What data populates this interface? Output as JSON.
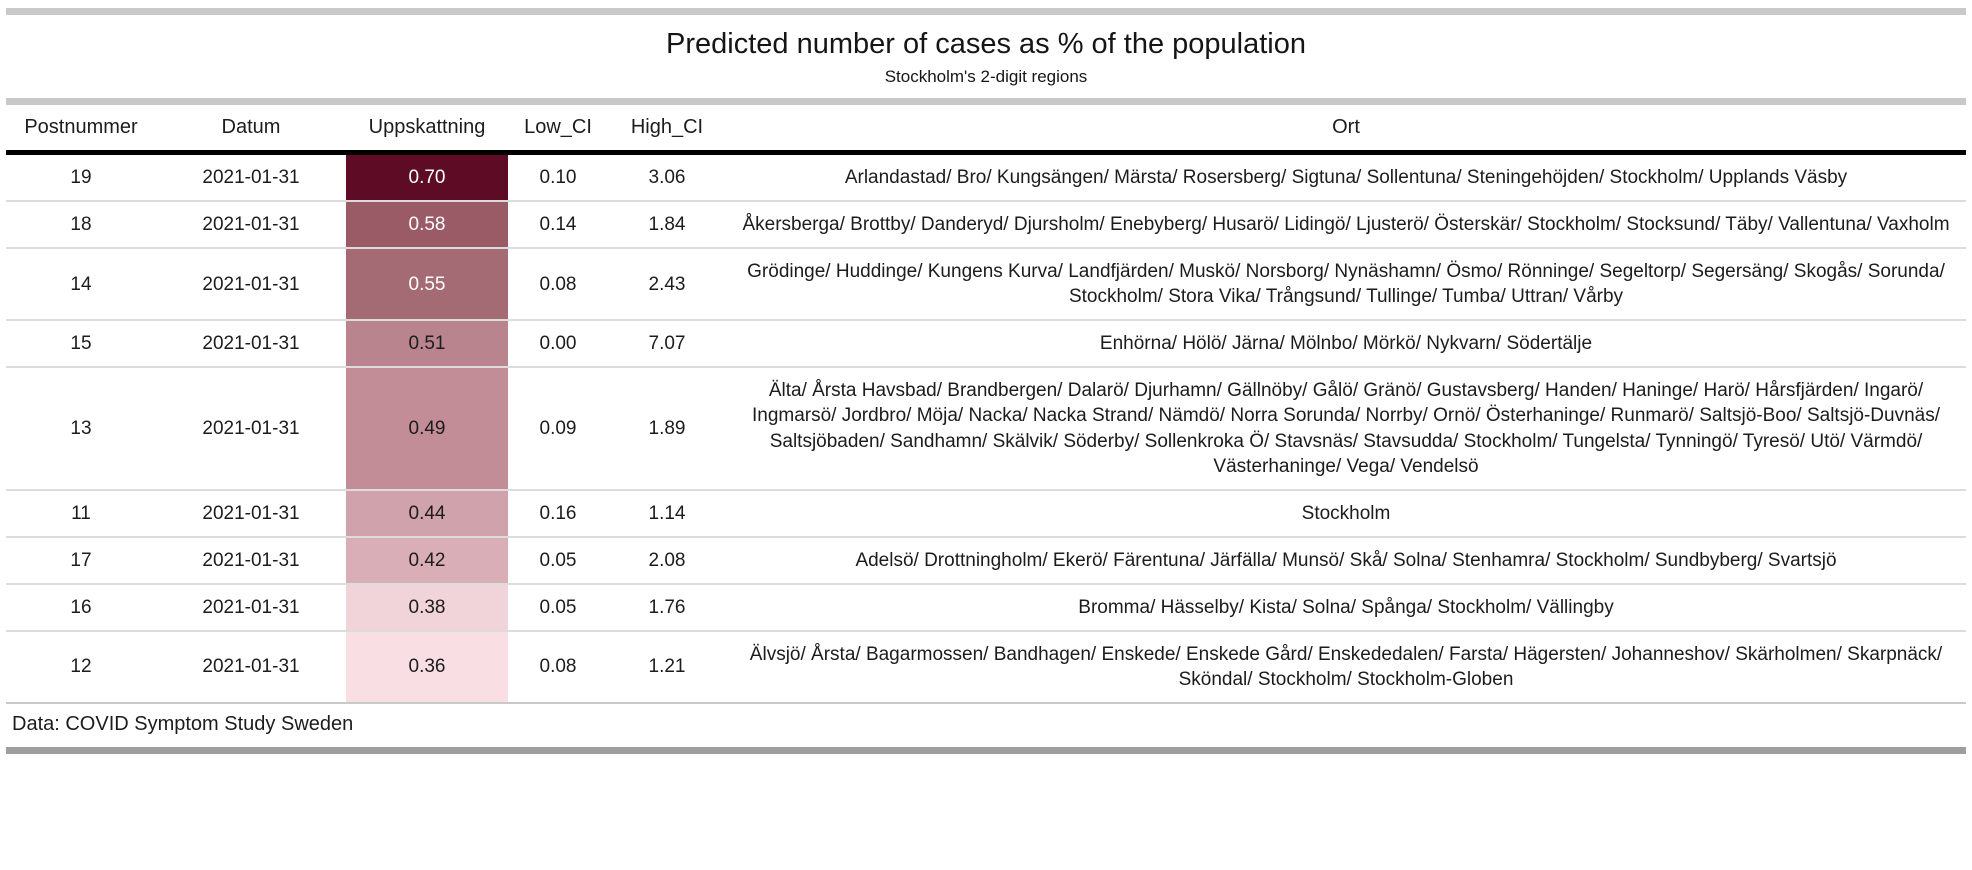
{
  "chart_data": {
    "type": "table",
    "title": "Predicted number of cases as % of the population",
    "subtitle": "Stockholm's 2-digit regions",
    "columns": [
      "Postnummer",
      "Datum",
      "Uppskattning",
      "Low_CI",
      "High_CI",
      "Ort"
    ],
    "rows": [
      {
        "postnummer": "19",
        "datum": "2021-01-31",
        "uppskattning": "0.70",
        "low_ci": "0.10",
        "high_ci": "3.06",
        "uppskattning_bg": "#5e0b25",
        "uppskattning_fg": "#ffffff",
        "ort": "Arlandastad/ Bro/ Kungsängen/ Märsta/ Rosersberg/ Sigtuna/ Sollentuna/ Steningehöjden/ Stockholm/ Upplands Väsby"
      },
      {
        "postnummer": "18",
        "datum": "2021-01-31",
        "uppskattning": "0.58",
        "low_ci": "0.14",
        "high_ci": "1.84",
        "uppskattning_bg": "#9a5a66",
        "uppskattning_fg": "#ffffff",
        "ort": "Åkersberga/ Brottby/ Danderyd/ Djursholm/ Enebyberg/ Husarö/ Lidingö/ Ljusterö/ Österskär/ Stockholm/ Stocksund/ Täby/ Vallentuna/ Vaxholm"
      },
      {
        "postnummer": "14",
        "datum": "2021-01-31",
        "uppskattning": "0.55",
        "low_ci": "0.08",
        "high_ci": "2.43",
        "uppskattning_bg": "#a56b74",
        "uppskattning_fg": "#ffffff",
        "ort": "Grödinge/ Huddinge/ Kungens Kurva/ Landfjärden/ Muskö/ Norsborg/ Nynäshamn/ Ösmo/ Rönninge/ Segeltorp/ Segersäng/ Skogås/ Sorunda/ Stockholm/ Stora Vika/ Trångsund/ Tullinge/ Tumba/ Uttran/ Vårby"
      },
      {
        "postnummer": "15",
        "datum": "2021-01-31",
        "uppskattning": "0.51",
        "low_ci": "0.00",
        "high_ci": "7.07",
        "uppskattning_bg": "#b9848e",
        "uppskattning_fg": "#1c1c1c",
        "ort": "Enhörna/ Hölö/ Järna/ Mölnbo/ Mörkö/ Nykvarn/ Södertälje"
      },
      {
        "postnummer": "13",
        "datum": "2021-01-31",
        "uppskattning": "0.49",
        "low_ci": "0.09",
        "high_ci": "1.89",
        "uppskattning_bg": "#c28d97",
        "uppskattning_fg": "#1c1c1c",
        "ort": "Älta/ Årsta Havsbad/ Brandbergen/ Dalarö/ Djurhamn/ Gällnöby/ Gålö/ Gränö/ Gustavsberg/ Handen/ Haninge/ Harö/ Hårsfjärden/ Ingarö/ Ingmarsö/ Jordbro/ Möja/ Nacka/ Nacka Strand/ Nämdö/ Norra Sorunda/ Norrby/ Ornö/ Österhaninge/ Runmarö/ Saltsjö-Boo/ Saltsjö-Duvnäs/ Saltsjöbaden/ Sandhamn/ Skälvik/ Söderby/ Sollenkroka Ö/ Stavsnäs/ Stavsudda/ Stockholm/ Tungelsta/ Tynningö/ Tyresö/ Utö/ Värmdö/ Västerhaninge/ Vega/ Vendelsö"
      },
      {
        "postnummer": "11",
        "datum": "2021-01-31",
        "uppskattning": "0.44",
        "low_ci": "0.16",
        "high_ci": "1.14",
        "uppskattning_bg": "#d0a2ab",
        "uppskattning_fg": "#1c1c1c",
        "ort": "Stockholm"
      },
      {
        "postnummer": "17",
        "datum": "2021-01-31",
        "uppskattning": "0.42",
        "low_ci": "0.05",
        "high_ci": "2.08",
        "uppskattning_bg": "#d9aeb6",
        "uppskattning_fg": "#1c1c1c",
        "ort": "Adelsö/ Drottningholm/ Ekerö/ Färentuna/ Järfälla/ Munsö/ Skå/ Solna/ Stenhamra/ Stockholm/ Sundbyberg/ Svartsjö"
      },
      {
        "postnummer": "16",
        "datum": "2021-01-31",
        "uppskattning": "0.38",
        "low_ci": "0.05",
        "high_ci": "1.76",
        "uppskattning_bg": "#f1d4d9",
        "uppskattning_fg": "#1c1c1c",
        "ort": "Bromma/ Hässelby/ Kista/ Solna/ Spånga/ Stockholm/ Vällingby"
      },
      {
        "postnummer": "12",
        "datum": "2021-01-31",
        "uppskattning": "0.36",
        "low_ci": "0.08",
        "high_ci": "1.21",
        "uppskattning_bg": "#f9dfe3",
        "uppskattning_fg": "#1c1c1c",
        "ort": "Älvsjö/ Årsta/ Bagarmossen/ Bandhagen/ Enskede/ Enskede Gård/ Enskededalen/ Farsta/ Hägersten/ Johanneshov/ Skärholmen/ Skarpnäck/ Sköndal/ Stockholm/ Stockholm-Globen"
      }
    ],
    "source_note": "Data: COVID Symptom Study Sweden",
    "legend_position": "none",
    "grid": "horizontal-row-separators",
    "accent_scale": [
      "#5e0b25",
      "#9a5a66",
      "#a56b74",
      "#b9848e",
      "#c28d97",
      "#d0a2ab",
      "#d9aeb6",
      "#f1d4d9",
      "#f9dfe3"
    ]
  }
}
